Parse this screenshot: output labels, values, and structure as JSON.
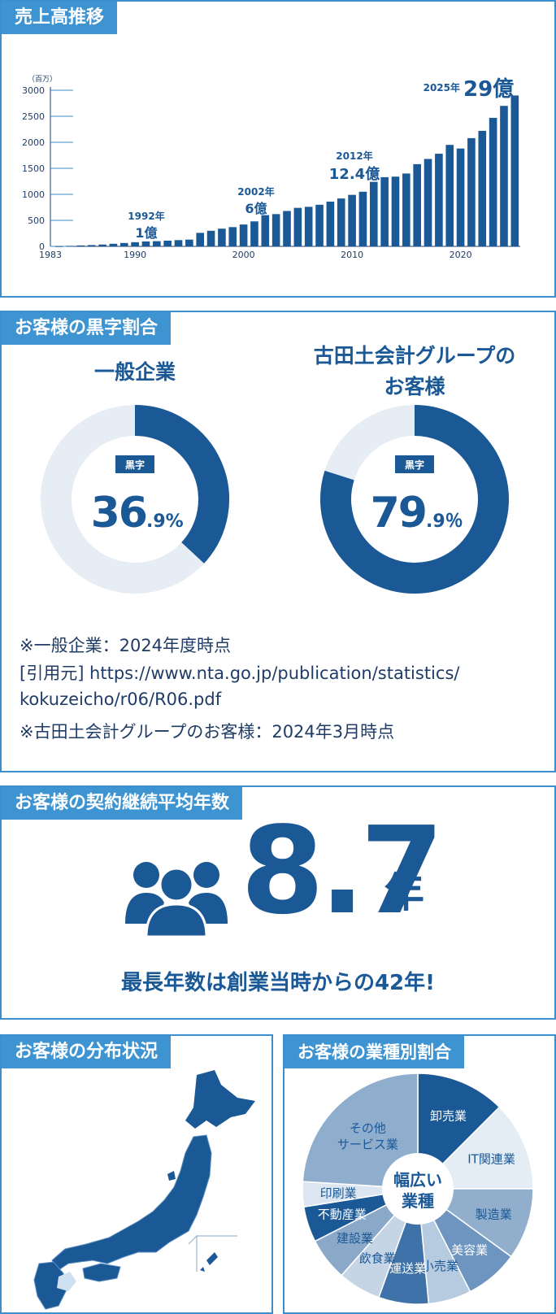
{
  "sales": {
    "tab": "売上高推移",
    "unit": "（百万）",
    "chart_data": {
      "type": "bar",
      "x": [
        1983,
        1984,
        1985,
        1986,
        1987,
        1988,
        1989,
        1990,
        1991,
        1992,
        1993,
        1994,
        1995,
        1996,
        1997,
        1998,
        1999,
        2000,
        2001,
        2002,
        2003,
        2004,
        2005,
        2006,
        2007,
        2008,
        2009,
        2010,
        2011,
        2012,
        2013,
        2014,
        2015,
        2016,
        2017,
        2018,
        2019,
        2020,
        2021,
        2022,
        2023,
        2024,
        2025
      ],
      "values": [
        5,
        10,
        18,
        25,
        35,
        50,
        65,
        80,
        95,
        100,
        110,
        120,
        130,
        260,
        300,
        340,
        370,
        420,
        480,
        600,
        620,
        680,
        740,
        760,
        800,
        860,
        920,
        990,
        1050,
        1240,
        1330,
        1340,
        1400,
        1580,
        1680,
        1780,
        1950,
        1880,
        2080,
        2220,
        2470,
        2700,
        2900
      ],
      "ylim": [
        0,
        3000
      ],
      "y_ticks": [
        "0",
        "500",
        "1000",
        "1500",
        "2000",
        "2500",
        "3000"
      ],
      "x_ticks": [
        "1983",
        "1990",
        "2000",
        "2010",
        "2020"
      ],
      "annotations": [
        {
          "year": "1992年",
          "amount": "1億"
        },
        {
          "year": "2002年",
          "amount": "6億"
        },
        {
          "year": "2012年",
          "amount": "12.4億"
        },
        {
          "year": "2025年",
          "amount": "29億"
        }
      ]
    }
  },
  "profit": {
    "tab": "お客様の黒字割合",
    "chart_data": [
      {
        "type": "pie",
        "title": "一般企業",
        "badge": "黒字",
        "value": 36.9,
        "value_main": "36",
        "value_sub": ".9%"
      },
      {
        "type": "pie",
        "title": "古田土会計グループの\nお客様",
        "title_line1": "古田土会計グループの",
        "title_line2": "お客様",
        "badge": "黒字",
        "value": 79.9,
        "value_main": "79",
        "value_sub": ".9％"
      }
    ],
    "notes": [
      "※一般企業：2024年度時点",
      "[引用元] https://www.nta.go.jp/publication/statistics/",
      "kokuzeicho/r06/R06.pdf",
      "※古田土会計グループのお客様：2024年3月時点"
    ]
  },
  "contract": {
    "tab": "お客様の契約継続平均年数",
    "value": "8.7",
    "unit": "年",
    "caption": "最長年数は創業当時からの42年!",
    "icon": "group-people-icon"
  },
  "distribution": {
    "tab": "お客様の分布状況",
    "icon": "japan-map"
  },
  "industry": {
    "tab": "お客様の業種別割合",
    "center_line1": "幅広い",
    "center_line2": "業種",
    "chart_data": {
      "type": "pie",
      "slices": [
        {
          "label": "卸売業",
          "value": 12.5,
          "color": "#1a5896"
        },
        {
          "label": "IT関連業",
          "value": 12.5,
          "color": "#e4ecf4"
        },
        {
          "label": "製造業",
          "value": 10,
          "color": "#91afcd"
        },
        {
          "label": "美容業",
          "value": 7.5,
          "color": "#6e95bf"
        },
        {
          "label": "小売業",
          "value": 6,
          "color": "#b6cbe0"
        },
        {
          "label": "運送業",
          "value": 7,
          "color": "#3f72a8"
        },
        {
          "label": "飲食業",
          "value": 6,
          "color": "#c5d5e6"
        },
        {
          "label": "建設業",
          "value": 6,
          "color": "#8aa8c8"
        },
        {
          "label": "不動産業",
          "value": 5,
          "color": "#1a5896"
        },
        {
          "label": "印刷業",
          "value": 3.5,
          "color": "#dce6f0"
        },
        {
          "label": "その他\nサービス業",
          "value": 24,
          "color": "#8fadcc"
        }
      ]
    }
  }
}
